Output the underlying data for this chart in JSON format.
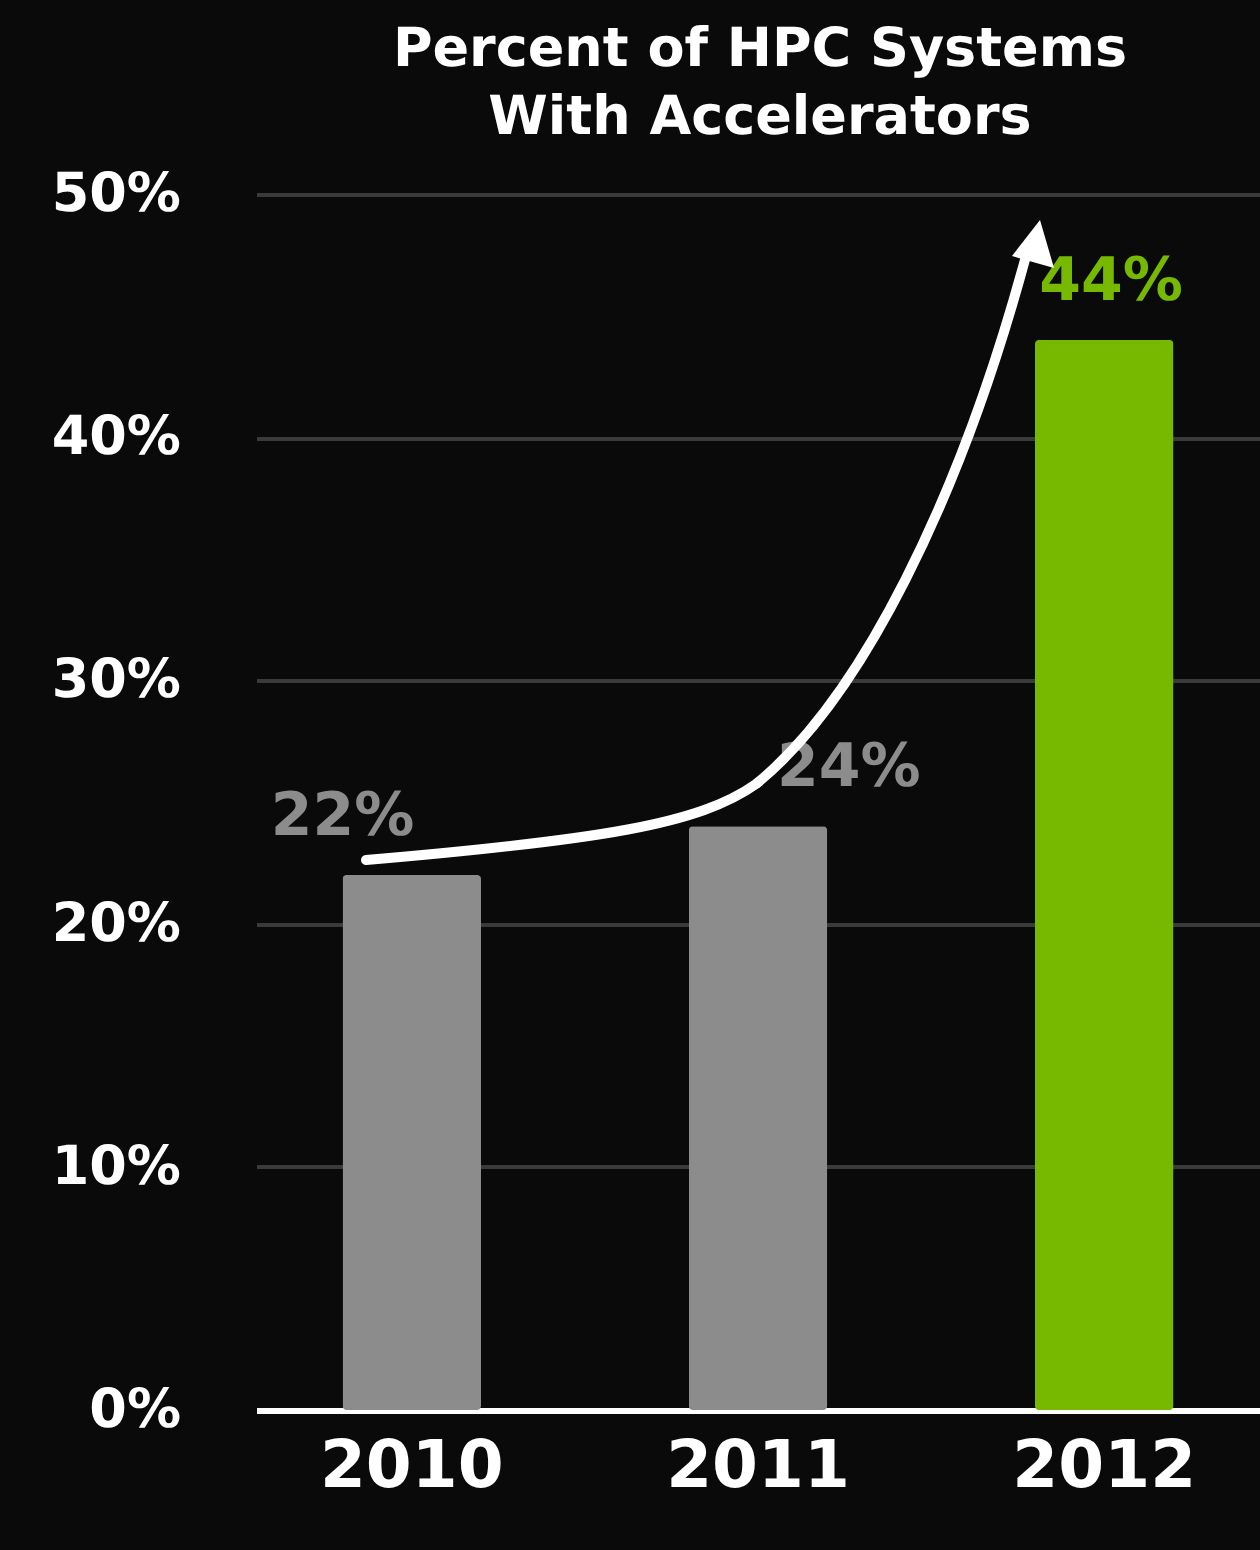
{
  "chart_data": {
    "type": "bar",
    "title": "Percent of HPC Systems With Accelerators",
    "categories": [
      "2010",
      "2011",
      "2012"
    ],
    "values": [
      22,
      24,
      44
    ],
    "colors": [
      "#8c8c8c",
      "#8c8c8c",
      "#76b900"
    ],
    "value_labels": [
      "22%",
      "24%",
      "44%"
    ],
    "ylim": [
      0,
      50
    ],
    "yticks": [
      {
        "value": 0,
        "label": "0%"
      },
      {
        "value": 10,
        "label": "10%"
      },
      {
        "value": 20,
        "label": "20%"
      },
      {
        "value": 30,
        "label": "30%"
      },
      {
        "value": 40,
        "label": "40%"
      },
      {
        "value": 50,
        "label": "50%"
      }
    ],
    "grid": "y"
  }
}
